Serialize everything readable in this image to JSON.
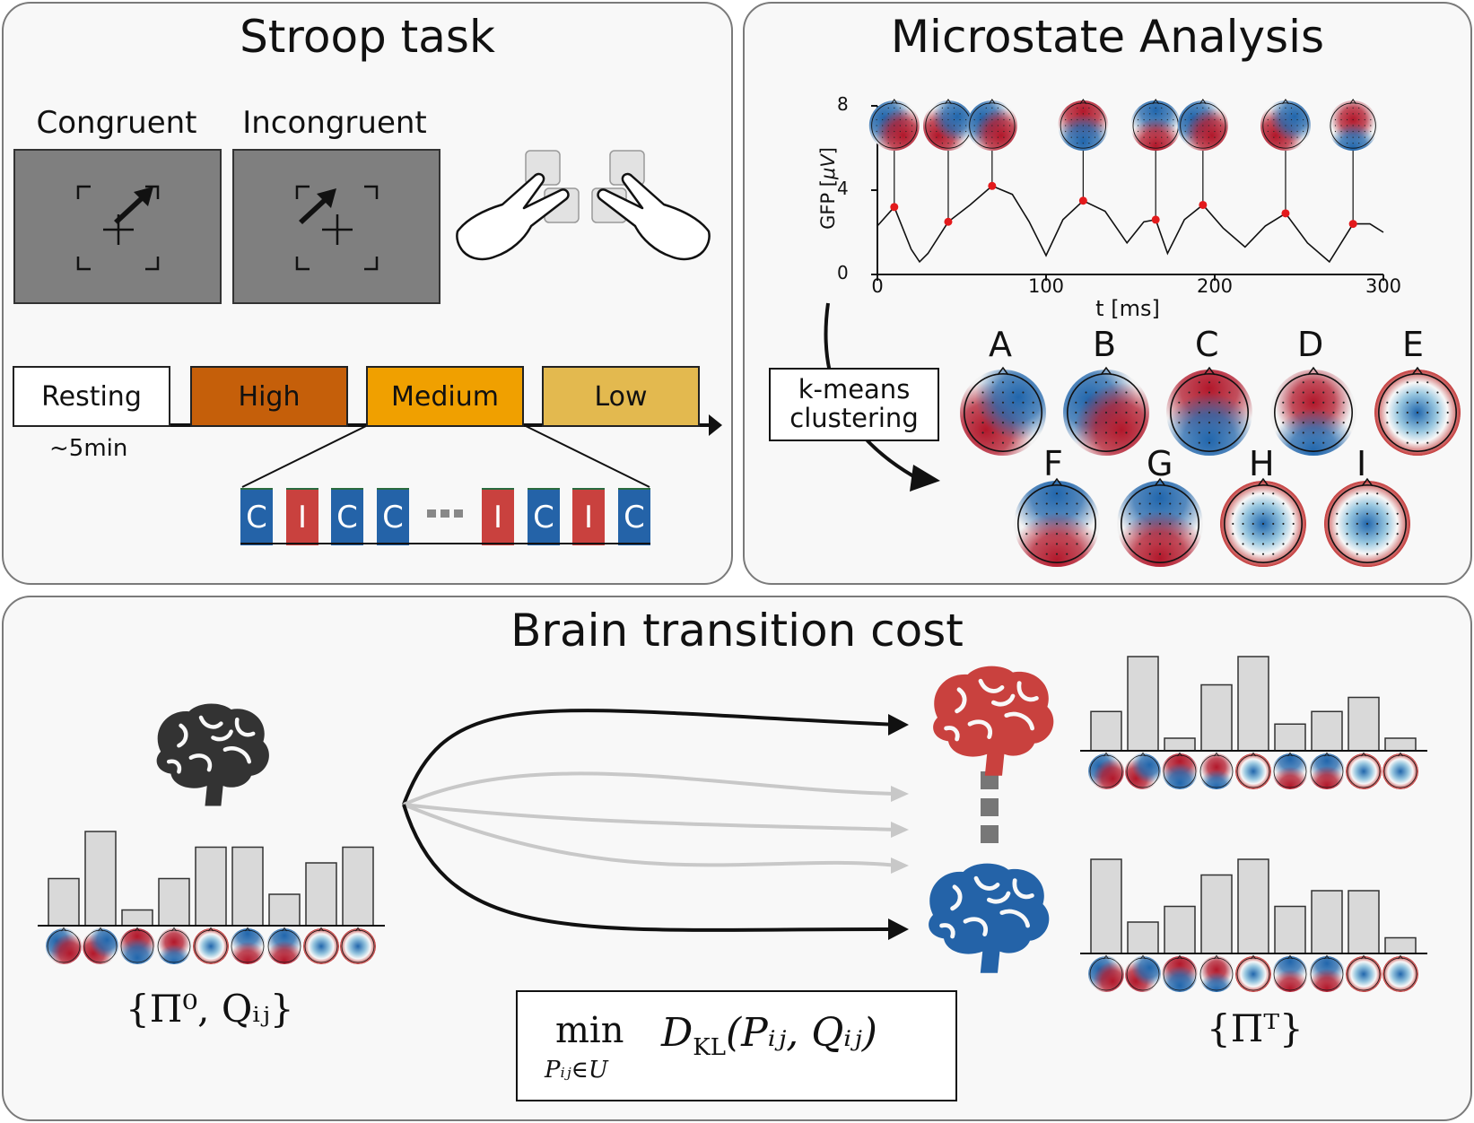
{
  "stroop": {
    "title": "Stroop task",
    "congruent_label": "Congruent",
    "incongruent_label": "Incongruent",
    "blocks": [
      {
        "label": "Resting",
        "color": "#ffffff"
      },
      {
        "label": "High",
        "color": "#c55f0a"
      },
      {
        "label": "Medium",
        "color": "#f0a000"
      },
      {
        "label": "Low",
        "color": "#e3b94f"
      }
    ],
    "rest_duration": "~5min",
    "trials": [
      "C",
      "I",
      "C",
      "C",
      "I",
      "C",
      "I",
      "C"
    ],
    "trial_colors": {
      "C": "#2463a8",
      "I": "#c9413e"
    }
  },
  "microstate": {
    "title": "Microstate Analysis",
    "gfp_ylabel_prefix": "GFP [",
    "gfp_ylabel_unit": "μV",
    "gfp_ylabel_suffix": "]",
    "xlabel": "t [ms]",
    "yticks": [
      "0",
      "4",
      "8"
    ],
    "xticks": [
      "0",
      "100",
      "200",
      "300"
    ],
    "kmeans_line1": "k-means",
    "kmeans_line2": "clustering",
    "state_labels": [
      "A",
      "B",
      "C",
      "D",
      "E",
      "F",
      "G",
      "H",
      "I"
    ]
  },
  "chart_data": [
    {
      "type": "line",
      "title": "",
      "xlabel": "t [ms]",
      "ylabel": "GFP [μV]",
      "xlim": [
        0,
        300
      ],
      "ylim": [
        0,
        8
      ],
      "x": [
        0,
        10,
        20,
        25,
        30,
        42,
        55,
        68,
        80,
        90,
        100,
        110,
        122,
        135,
        148,
        158,
        165,
        172,
        182,
        193,
        205,
        218,
        230,
        242,
        255,
        268,
        282,
        292,
        300
      ],
      "y": [
        2.3,
        3.2,
        1.2,
        0.6,
        1.0,
        2.5,
        3.3,
        4.2,
        3.8,
        2.5,
        0.9,
        2.6,
        3.5,
        3.0,
        1.5,
        2.5,
        2.6,
        1.0,
        2.6,
        3.3,
        2.2,
        1.3,
        2.3,
        2.9,
        1.5,
        0.6,
        2.4,
        2.4,
        2.0
      ],
      "peaks": [
        {
          "x": 10,
          "y": 3.2
        },
        {
          "x": 42,
          "y": 2.5
        },
        {
          "x": 68,
          "y": 4.2
        },
        {
          "x": 122,
          "y": 3.5
        },
        {
          "x": 165,
          "y": 2.6
        },
        {
          "x": 193,
          "y": 3.3
        },
        {
          "x": 242,
          "y": 2.9
        },
        {
          "x": 282,
          "y": 2.4
        }
      ]
    },
    {
      "type": "bar",
      "title": "",
      "categories": [
        "A",
        "B",
        "C",
        "D",
        "E",
        "F",
        "G",
        "H",
        "I"
      ],
      "values": [
        3,
        6,
        1,
        3,
        5,
        5,
        2,
        4,
        5
      ],
      "ylim": [
        0,
        6
      ]
    },
    {
      "type": "bar",
      "title": "",
      "categories": [
        "A",
        "B",
        "C",
        "D",
        "E",
        "F",
        "G",
        "H",
        "I"
      ],
      "values": [
        2.5,
        6,
        0.8,
        4.2,
        6,
        1.7,
        2.5,
        3.4,
        0.8
      ],
      "ylim": [
        0,
        6
      ]
    },
    {
      "type": "bar",
      "title": "",
      "categories": [
        "A",
        "B",
        "C",
        "D",
        "E",
        "F",
        "G",
        "H",
        "I"
      ],
      "values": [
        6,
        2,
        3,
        5,
        6,
        3,
        4,
        4,
        1
      ],
      "ylim": [
        0,
        6
      ]
    }
  ],
  "transition": {
    "title": "Brain transition cost",
    "initial_label": "{Π⁰, Qᵢⱼ}",
    "final_label": "{Πᵀ}",
    "objective_min": "min",
    "objective_sub": "Pᵢⱼ∈U",
    "objective_expr": "D",
    "objective_kl": "KL",
    "objective_args": "(Pᵢⱼ, Qᵢⱼ)",
    "colors": {
      "red_brain": "#c9413e",
      "blue_brain": "#2463a8",
      "dark_brain": "#333333",
      "bar_fill": "#d9d9d9"
    }
  }
}
